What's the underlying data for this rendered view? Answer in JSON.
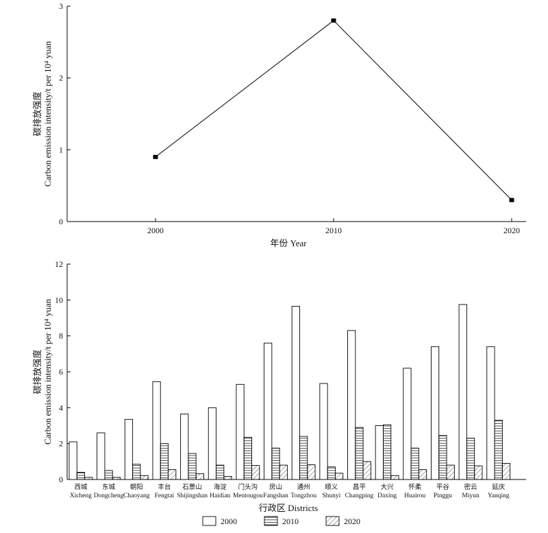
{
  "chart_data": [
    {
      "type": "line",
      "x": [
        "2000",
        "2010",
        "2020"
      ],
      "series": [
        {
          "values": [
            0.9,
            2.8,
            0.3
          ]
        }
      ],
      "xlabel": "年份 Year",
      "ylabel_cn": "碳排放强度",
      "ylabel_en": "Carbon emission intensity/t per 10⁴ yuan",
      "ylim": [
        0,
        3
      ],
      "yticks": [
        "0",
        "1",
        "2",
        "3"
      ],
      "grid": false,
      "marker": "square"
    },
    {
      "type": "bar",
      "categories_cn": [
        "西城",
        "东城",
        "朝阳",
        "丰台",
        "石景山",
        "海淀",
        "门头沟",
        "房山",
        "通州",
        "顺义",
        "昌平",
        "大兴",
        "怀柔",
        "平谷",
        "密云",
        "延庆"
      ],
      "categories_en": [
        "Xicheng",
        "Dongcheng",
        "Chaoyang",
        "Fengtai",
        "Shijingshan",
        "Haidian",
        "Mentougou",
        "Fangshan",
        "Tongzhou",
        "Shunyi",
        "Changping",
        "Daxing",
        "Huairou",
        "Pinggu",
        "Miyun",
        "Yanqing"
      ],
      "series": [
        {
          "name": "2000",
          "pattern": "empty",
          "values": [
            2.1,
            2.6,
            3.35,
            5.45,
            3.65,
            4.0,
            5.3,
            7.6,
            9.65,
            5.35,
            8.3,
            3.0,
            6.2,
            7.4,
            9.75,
            7.4
          ]
        },
        {
          "name": "2010",
          "pattern": "horizontal-lines",
          "values": [
            0.4,
            0.5,
            0.85,
            2.0,
            1.45,
            0.8,
            2.35,
            1.75,
            2.4,
            0.7,
            2.9,
            3.05,
            1.75,
            2.45,
            2.3,
            3.3
          ]
        },
        {
          "name": "2020",
          "pattern": "diagonal-lines",
          "values": [
            0.12,
            0.12,
            0.22,
            0.55,
            0.32,
            0.17,
            0.78,
            0.8,
            0.82,
            0.35,
            1.0,
            0.22,
            0.55,
            0.8,
            0.76,
            0.9
          ]
        }
      ],
      "xlabel": "行政区 Districts",
      "ylabel_cn": "碳排放强度",
      "ylabel_en": "Carbon emission intensity/t per 10⁴ yuan",
      "ylim": [
        0,
        12
      ],
      "yticks": [
        "0",
        "2",
        "4",
        "6",
        "8",
        "10",
        "12"
      ],
      "grid": false,
      "legend_position": "bottom"
    }
  ]
}
